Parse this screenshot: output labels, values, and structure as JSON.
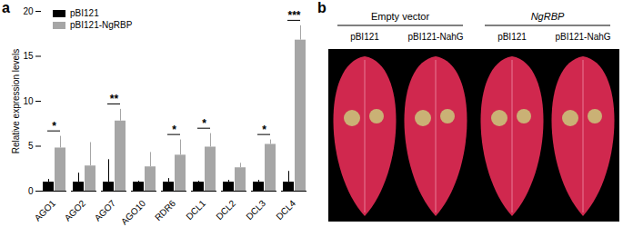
{
  "chart_data": {
    "type": "bar",
    "panel_label": "a",
    "y_label": "Relative expression levels",
    "categories": [
      "AGO1",
      "AGO2",
      "AGO7",
      "AGO10",
      "RDR6",
      "DCL1",
      "DCL2",
      "DCL3",
      "DCL4"
    ],
    "series": [
      {
        "name": "pBI121",
        "color": "#000000",
        "values": [
          1.0,
          1.0,
          1.0,
          1.0,
          1.0,
          1.0,
          1.0,
          1.0,
          1.0
        ],
        "errors": [
          0.3,
          1.0,
          2.5,
          0.1,
          0.4,
          0.1,
          0.2,
          0.2,
          1.2
        ]
      },
      {
        "name": "pBI121-NgRBP",
        "color": "#a6a6a6",
        "values": [
          4.8,
          2.8,
          7.8,
          2.7,
          4.0,
          4.9,
          2.6,
          5.2,
          16.8
        ],
        "errors": [
          1.3,
          2.6,
          1.3,
          1.6,
          1.7,
          1.5,
          0.5,
          0.5,
          1.6
        ]
      }
    ],
    "annotations": [
      {
        "category": "AGO1",
        "label": "*"
      },
      {
        "category": "AGO7",
        "label": "**"
      },
      {
        "category": "RDR6",
        "label": "*"
      },
      {
        "category": "DCL1",
        "label": "*"
      },
      {
        "category": "DCL3",
        "label": "*"
      },
      {
        "category": "DCL4",
        "label": "***"
      }
    ],
    "ylim": [
      0,
      20
    ],
    "yticks": [
      0,
      5,
      10,
      15,
      20
    ],
    "legend": "top-left"
  },
  "panel_b": {
    "panel_label": "b",
    "groups": [
      {
        "title": "Empty vector",
        "labels": [
          "pBI121",
          "pBI121-NahG"
        ]
      },
      {
        "title": "NgRBP",
        "labels": [
          "pBI121",
          "pBI121-NahG"
        ]
      }
    ]
  }
}
